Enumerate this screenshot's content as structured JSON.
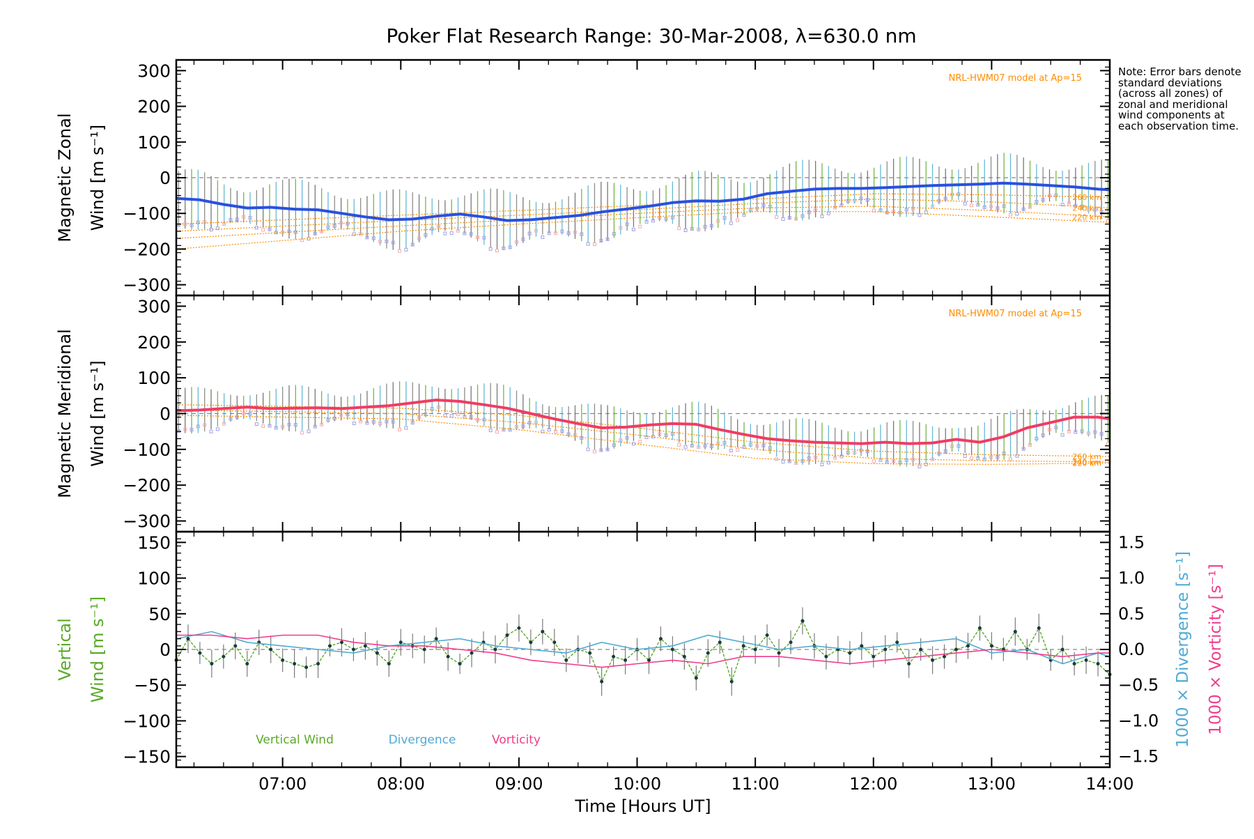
{
  "title": "Poker Flat Research Range: 30-Mar-2008, λ=630.0 nm",
  "note": "Note: Error bars denote standard deviations (across all zones) of zonal and meridional wind components at each observation time.",
  "colors": {
    "zonal": "#2850e0",
    "meridional": "#f03c64",
    "vertical": "#5aaa28",
    "divergence": "#50aad2",
    "vorticity": "#f03c8c",
    "model": "#ff8c00",
    "zone_a": "#a0a0e6",
    "zone_b": "#f5aaaa",
    "error_bar": "#7a7a7a"
  },
  "chart_data": [
    {
      "type": "line",
      "id": "zonal",
      "ylabel": [
        "Magnetic Zonal",
        "Wind [m s⁻¹]"
      ],
      "ylim": [
        -330,
        330
      ],
      "yticks": [
        -300,
        -200,
        -100,
        0,
        100,
        200,
        300
      ],
      "ytick_labels": [
        "−300",
        "−200",
        "−100",
        "0",
        "100",
        "200",
        "300"
      ],
      "xlim": [
        6.1,
        14.0
      ],
      "model_label": "NRL-HWM07 model at Ap=15",
      "model_lines": [
        {
          "label": "260 km",
          "x": [
            6.1,
            8.0,
            9.0,
            10.0,
            11.0,
            12.0,
            13.0,
            14.0
          ],
          "y": [
            -130,
            -105,
            -92,
            -78,
            -60,
            -45,
            -48,
            -55
          ]
        },
        {
          "label": "240 km",
          "x": [
            6.1,
            8.0,
            9.0,
            10.0,
            11.0,
            12.0,
            13.0,
            14.0
          ],
          "y": [
            -150,
            -120,
            -105,
            -90,
            -72,
            -60,
            -68,
            -85
          ]
        },
        {
          "label": "220 km",
          "x": [
            6.1,
            8.0,
            9.0,
            10.0,
            11.0,
            12.0,
            13.0,
            14.0
          ],
          "y": [
            -170,
            -135,
            -118,
            -100,
            -85,
            -80,
            -92,
            -110
          ]
        },
        {
          "label": "",
          "x": [
            6.1,
            8.0,
            9.0,
            10.0,
            11.0,
            12.0,
            13.0,
            14.0
          ],
          "y": [
            -200,
            -150,
            -130,
            -112,
            -95,
            -95,
            -110,
            -125
          ]
        }
      ],
      "main_series": {
        "name": "Zonal wind",
        "x": [
          6.1,
          6.3,
          6.5,
          6.7,
          6.9,
          7.1,
          7.3,
          7.5,
          7.7,
          7.9,
          8.1,
          8.3,
          8.5,
          8.7,
          8.9,
          9.1,
          9.3,
          9.5,
          9.7,
          9.9,
          10.1,
          10.3,
          10.5,
          10.7,
          10.9,
          11.1,
          11.3,
          11.5,
          11.7,
          11.9,
          12.1,
          12.3,
          12.5,
          12.7,
          12.9,
          13.1,
          13.3,
          13.5,
          13.7,
          13.9,
          14.0
        ],
        "y": [
          -58,
          -62,
          -75,
          -85,
          -83,
          -88,
          -90,
          -100,
          -110,
          -118,
          -116,
          -108,
          -102,
          -110,
          -120,
          -118,
          -112,
          -106,
          -96,
          -88,
          -80,
          -70,
          -65,
          -66,
          -60,
          -45,
          -38,
          -32,
          -30,
          -30,
          -28,
          -25,
          -22,
          -20,
          -18,
          -15,
          -18,
          -22,
          -26,
          -32,
          -34
        ]
      },
      "error_half": 85
    },
    {
      "type": "line",
      "id": "meridional",
      "ylabel": [
        "Magnetic Meridional",
        "Wind [m s⁻¹]"
      ],
      "ylim": [
        -330,
        330
      ],
      "yticks": [
        -300,
        -200,
        -100,
        0,
        100,
        200,
        300
      ],
      "ytick_labels": [
        "−300",
        "−200",
        "−100",
        "0",
        "100",
        "200",
        "300"
      ],
      "xlim": [
        6.1,
        14.0
      ],
      "model_label": "NRL-HWM07 model at Ap=15",
      "model_lines": [
        {
          "label": "260 km",
          "x": [
            6.1,
            8.0,
            9.0,
            10.0,
            11.0,
            12.0,
            13.0,
            14.0
          ],
          "y": [
            25,
            15,
            -5,
            -40,
            -80,
            -105,
            -115,
            -120
          ]
        },
        {
          "label": "240 km",
          "x": [
            6.1,
            8.0,
            9.0,
            10.0,
            11.0,
            12.0,
            13.0,
            14.0
          ],
          "y": [
            10,
            0,
            -25,
            -60,
            -100,
            -125,
            -132,
            -135
          ]
        },
        {
          "label": "220 km",
          "x": [
            6.1,
            8.0,
            9.0,
            10.0,
            11.0,
            12.0,
            13.0,
            14.0
          ],
          "y": [
            -5,
            -15,
            -45,
            -85,
            -125,
            -140,
            -142,
            -138
          ]
        }
      ],
      "main_series": {
        "name": "Meridional wind",
        "x": [
          6.1,
          6.3,
          6.5,
          6.7,
          6.9,
          7.1,
          7.3,
          7.5,
          7.7,
          7.9,
          8.1,
          8.3,
          8.5,
          8.7,
          8.9,
          9.1,
          9.3,
          9.5,
          9.7,
          9.9,
          10.1,
          10.3,
          10.5,
          10.7,
          10.9,
          11.1,
          11.3,
          11.5,
          11.7,
          11.9,
          12.1,
          12.3,
          12.5,
          12.7,
          12.9,
          13.1,
          13.3,
          13.5,
          13.7,
          13.9,
          14.0
        ],
        "y": [
          8,
          10,
          14,
          18,
          14,
          15,
          16,
          14,
          18,
          22,
          30,
          38,
          34,
          25,
          15,
          0,
          -15,
          -28,
          -40,
          -38,
          -32,
          -28,
          -30,
          -45,
          -58,
          -70,
          -76,
          -80,
          -82,
          -84,
          -80,
          -84,
          -82,
          -72,
          -80,
          -65,
          -40,
          -25,
          -10,
          -10,
          -15
        ]
      },
      "error_half": 65
    },
    {
      "type": "line",
      "id": "vertical",
      "ylabel_left": [
        "Vertical",
        "Wind [m s⁻¹]"
      ],
      "ylabel_right": [
        "1000 × Divergence [s⁻¹]",
        "1000 × Vorticity [s⁻¹]"
      ],
      "ylim": [
        -165,
        165
      ],
      "yticks": [
        -150,
        -100,
        -50,
        0,
        50,
        100,
        150
      ],
      "ytick_labels": [
        "−150",
        "−100",
        "−50",
        "0",
        "50",
        "100",
        "150"
      ],
      "ylim_right": [
        -1.65,
        1.65
      ],
      "yticks_right": [
        -1.5,
        -1.0,
        -0.5,
        0.0,
        0.5,
        1.0,
        1.5
      ],
      "ytick_labels_right": [
        "−1.5",
        "−1.0",
        "−0.5",
        "0.0",
        "0.5",
        "1.0",
        "1.5"
      ],
      "xlim": [
        6.1,
        14.0
      ],
      "xticks": [
        7,
        8,
        9,
        10,
        11,
        12,
        13,
        14
      ],
      "xtick_labels": [
        "07:00",
        "08:00",
        "09:00",
        "10:00",
        "11:00",
        "12:00",
        "13:00",
        "14:00"
      ],
      "xlabel": "Time [Hours UT]",
      "legend": [
        "Vertical Wind",
        "Divergence",
        "Vorticity"
      ],
      "series": [
        {
          "name": "Vertical Wind",
          "x": [
            6.1,
            6.2,
            6.3,
            6.4,
            6.5,
            6.6,
            6.7,
            6.8,
            6.9,
            7.0,
            7.1,
            7.2,
            7.3,
            7.4,
            7.5,
            7.6,
            7.7,
            7.8,
            7.9,
            8.0,
            8.1,
            8.2,
            8.3,
            8.4,
            8.5,
            8.6,
            8.7,
            8.8,
            8.9,
            9.0,
            9.1,
            9.2,
            9.3,
            9.4,
            9.5,
            9.6,
            9.7,
            9.8,
            9.9,
            10.0,
            10.1,
            10.2,
            10.3,
            10.4,
            10.5,
            10.6,
            10.7,
            10.8,
            10.9,
            11.0,
            11.1,
            11.2,
            11.3,
            11.4,
            11.5,
            11.6,
            11.7,
            11.8,
            11.9,
            12.0,
            12.1,
            12.2,
            12.3,
            12.4,
            12.5,
            12.6,
            12.7,
            12.8,
            12.9,
            13.0,
            13.1,
            13.2,
            13.3,
            13.4,
            13.5,
            13.6,
            13.7,
            13.8,
            13.9,
            14.0
          ],
          "y": [
            -15,
            15,
            -5,
            -20,
            -10,
            5,
            -20,
            10,
            0,
            -15,
            -20,
            -25,
            -20,
            5,
            10,
            0,
            5,
            -5,
            -20,
            10,
            5,
            0,
            15,
            -10,
            -20,
            -5,
            10,
            0,
            20,
            30,
            10,
            25,
            10,
            -15,
            0,
            -5,
            -45,
            -10,
            -15,
            0,
            -15,
            15,
            0,
            -10,
            -40,
            -5,
            10,
            -45,
            5,
            0,
            20,
            -5,
            10,
            40,
            5,
            -10,
            0,
            -5,
            5,
            -10,
            0,
            10,
            -20,
            0,
            -15,
            -10,
            0,
            5,
            30,
            5,
            0,
            25,
            0,
            30,
            -15,
            0,
            -20,
            -15,
            -20,
            -35
          ]
        },
        {
          "name": "Divergence",
          "x": [
            6.1,
            6.4,
            6.7,
            7.0,
            7.3,
            7.6,
            7.9,
            8.2,
            8.5,
            8.8,
            9.1,
            9.4,
            9.7,
            10.0,
            10.3,
            10.6,
            10.9,
            11.2,
            11.5,
            11.8,
            12.1,
            12.4,
            12.7,
            13.0,
            13.3,
            13.6,
            13.9,
            14.0
          ],
          "y": [
            0.15,
            0.25,
            0.1,
            0.05,
            0.0,
            -0.05,
            0.05,
            0.1,
            0.15,
            0.05,
            0.0,
            -0.05,
            0.1,
            0.0,
            0.05,
            0.2,
            0.1,
            0.0,
            0.05,
            0.0,
            0.05,
            0.1,
            0.15,
            -0.05,
            0.0,
            -0.2,
            -0.05,
            -0.1
          ]
        },
        {
          "name": "Vorticity",
          "x": [
            6.1,
            6.4,
            6.7,
            7.0,
            7.3,
            7.6,
            7.9,
            8.2,
            8.5,
            8.8,
            9.1,
            9.4,
            9.7,
            10.0,
            10.3,
            10.6,
            10.9,
            11.2,
            11.5,
            11.8,
            12.1,
            12.4,
            12.7,
            13.0,
            13.3,
            13.6,
            13.9,
            14.0
          ],
          "y": [
            0.2,
            0.2,
            0.15,
            0.2,
            0.2,
            0.1,
            0.05,
            0.05,
            0.0,
            -0.05,
            -0.15,
            -0.2,
            -0.25,
            -0.2,
            -0.15,
            -0.2,
            -0.1,
            -0.1,
            -0.15,
            -0.2,
            -0.15,
            -0.1,
            -0.05,
            0.0,
            -0.05,
            -0.1,
            -0.05,
            -0.05
          ]
        }
      ]
    }
  ]
}
